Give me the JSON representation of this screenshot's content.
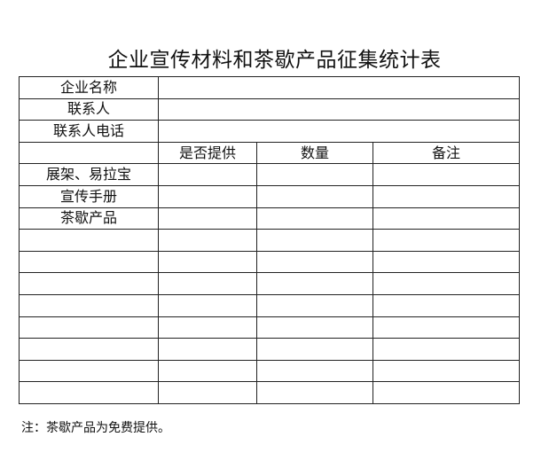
{
  "title": "企业宣传材料和茶歇产品征集统计表",
  "info_rows": [
    "企业名称",
    "联系人",
    "联系人电话"
  ],
  "columns": [
    "",
    "是否提供",
    "数量",
    "备注"
  ],
  "items": [
    "展架、易拉宝",
    "宣传手册",
    "茶歇产品",
    "",
    "",
    "",
    "",
    "",
    "",
    "",
    ""
  ],
  "note": "注：茶歇产品为免费提供。"
}
